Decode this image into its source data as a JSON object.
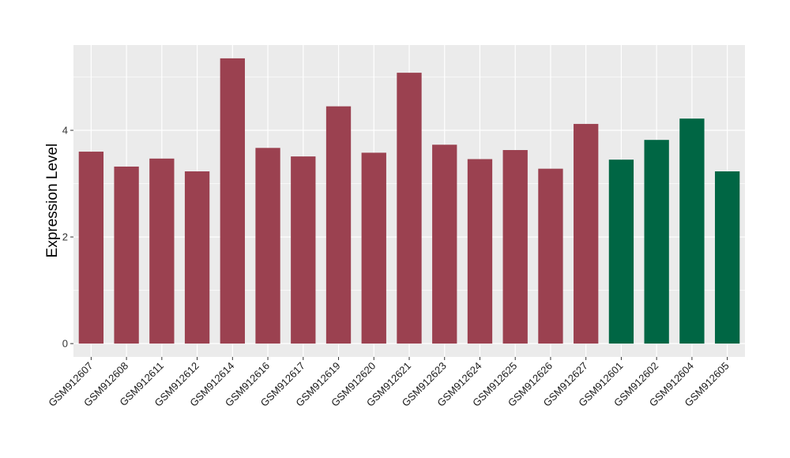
{
  "chart_data": {
    "type": "bar",
    "ylabel": "Expression Level",
    "xlabel": "",
    "ylim": [
      -0.25,
      5.6
    ],
    "yticks": [
      0,
      2,
      4
    ],
    "grid": true,
    "legend": "none",
    "categories": [
      "GSM912607",
      "GSM912608",
      "GSM912611",
      "GSM912612",
      "GSM912614",
      "GSM912616",
      "GSM912617",
      "GSM912619",
      "GSM912620",
      "GSM912621",
      "GSM912623",
      "GSM912624",
      "GSM912625",
      "GSM912626",
      "GSM912627",
      "GSM912601",
      "GSM912602",
      "GSM912604",
      "GSM912605"
    ],
    "values": [
      3.6,
      3.32,
      3.47,
      3.23,
      5.35,
      3.67,
      3.51,
      4.45,
      3.58,
      5.08,
      3.73,
      3.46,
      3.63,
      3.28,
      4.12,
      3.45,
      3.82,
      4.22,
      3.23
    ],
    "group_colors": [
      "#9b4150",
      "#9b4150",
      "#9b4150",
      "#9b4150",
      "#9b4150",
      "#9b4150",
      "#9b4150",
      "#9b4150",
      "#9b4150",
      "#9b4150",
      "#9b4150",
      "#9b4150",
      "#9b4150",
      "#9b4150",
      "#9b4150",
      "#006644",
      "#006644",
      "#006644",
      "#006644"
    ],
    "panel_background": "#ebebeb",
    "grid_color": "#ffffff"
  }
}
